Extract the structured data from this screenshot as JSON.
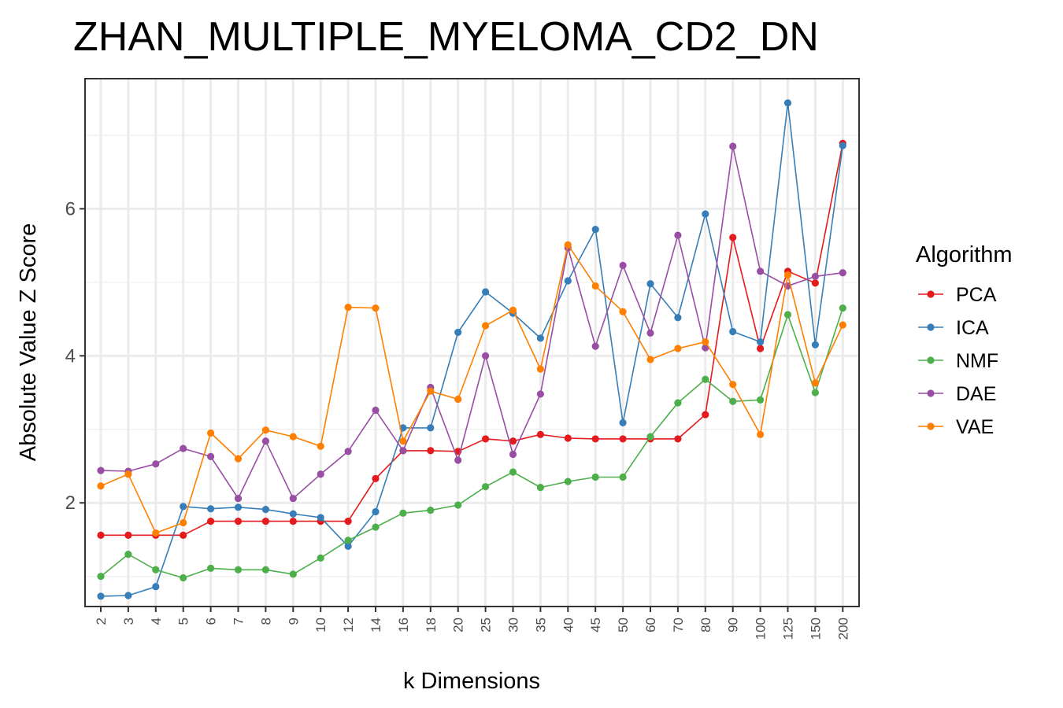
{
  "chart_data": {
    "type": "line",
    "title": "ZHAN_MULTIPLE_MYELOMA_CD2_DN",
    "xlabel": "k Dimensions",
    "ylabel": "Absolute Value Z Score",
    "categories": [
      "2",
      "3",
      "4",
      "5",
      "6",
      "7",
      "8",
      "9",
      "10",
      "12",
      "14",
      "16",
      "18",
      "20",
      "25",
      "30",
      "35",
      "40",
      "45",
      "50",
      "60",
      "70",
      "80",
      "90",
      "100",
      "125",
      "150",
      "200"
    ],
    "ylim": [
      0.59,
      7.77
    ],
    "yticks": [
      2,
      4,
      6
    ],
    "grid": true,
    "legend": {
      "title": "Algorithm",
      "position": "right"
    },
    "series": [
      {
        "name": "PCA",
        "color": "#e41a1c",
        "values": [
          1.56,
          1.56,
          1.56,
          1.56,
          1.75,
          1.75,
          1.75,
          1.75,
          1.75,
          1.75,
          2.33,
          2.71,
          2.71,
          2.7,
          2.87,
          2.84,
          2.93,
          2.88,
          2.87,
          2.87,
          2.87,
          2.87,
          3.2,
          5.61,
          4.1,
          5.15,
          4.99,
          6.89
        ]
      },
      {
        "name": "ICA",
        "color": "#377eb8",
        "values": [
          0.73,
          0.74,
          0.86,
          1.95,
          1.92,
          1.94,
          1.91,
          1.85,
          1.8,
          1.41,
          1.88,
          3.02,
          3.02,
          4.32,
          4.87,
          4.58,
          4.24,
          5.02,
          5.72,
          3.09,
          4.98,
          4.52,
          5.93,
          4.33,
          4.19,
          7.44,
          4.15,
          6.86
        ]
      },
      {
        "name": "NMF",
        "color": "#4daf4a",
        "values": [
          1.0,
          1.3,
          1.09,
          0.98,
          1.11,
          1.09,
          1.09,
          1.03,
          1.25,
          1.49,
          1.67,
          1.86,
          1.9,
          1.97,
          2.22,
          2.42,
          2.21,
          2.29,
          2.35,
          2.35,
          2.9,
          3.36,
          3.68,
          3.38,
          3.4,
          4.56,
          3.5,
          4.65
        ]
      },
      {
        "name": "DAE",
        "color": "#984ea3",
        "values": [
          2.44,
          2.43,
          2.53,
          2.74,
          2.63,
          2.06,
          2.84,
          2.06,
          2.39,
          2.7,
          3.26,
          2.71,
          3.57,
          2.58,
          4.0,
          2.66,
          3.48,
          5.47,
          4.13,
          5.23,
          4.31,
          5.64,
          4.11,
          6.85,
          5.15,
          4.95,
          5.08,
          5.13
        ]
      },
      {
        "name": "VAE",
        "color": "#ff7f00",
        "values": [
          2.23,
          2.39,
          1.59,
          1.73,
          2.95,
          2.6,
          2.99,
          2.9,
          2.77,
          4.66,
          4.65,
          2.84,
          3.52,
          3.41,
          4.41,
          4.62,
          3.82,
          5.51,
          4.95,
          4.6,
          3.95,
          4.1,
          4.19,
          3.61,
          2.93,
          5.1,
          3.63,
          4.42
        ]
      }
    ]
  }
}
